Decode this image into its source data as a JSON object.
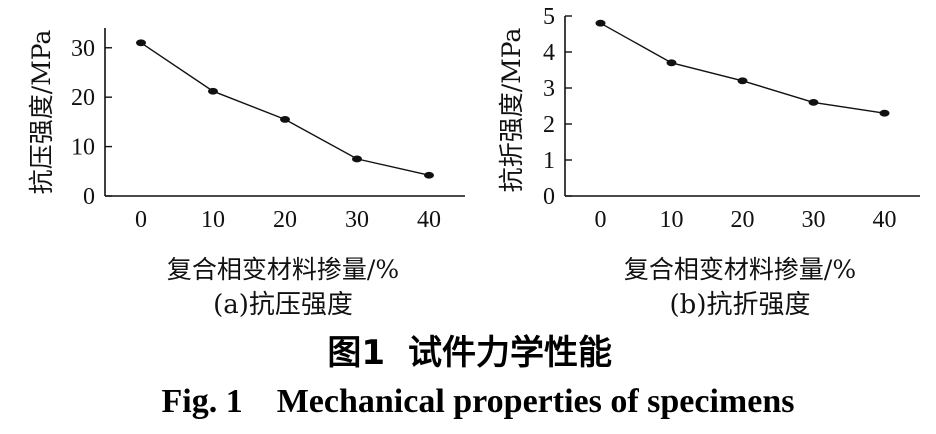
{
  "chart_data": [
    {
      "type": "line",
      "xlabel": "复合相变材料掺量/%",
      "ylabel": "抗压强度/MPa",
      "subcaption": "(a)抗压强度",
      "x": [
        0,
        10,
        20,
        30,
        40
      ],
      "values": [
        31,
        21.2,
        15.5,
        7.5,
        4.2
      ],
      "xticks": [
        0,
        10,
        20,
        30,
        40
      ],
      "yticks": [
        0,
        10,
        20,
        30
      ],
      "xlim": [
        -5,
        45
      ],
      "ylim": [
        0,
        34
      ],
      "grid": false
    },
    {
      "type": "line",
      "xlabel": "复合相变材料掺量/%",
      "ylabel": "抗折强度/MPa",
      "subcaption": "(b)抗折强度",
      "x": [
        0,
        10,
        20,
        30,
        40
      ],
      "values": [
        4.8,
        3.7,
        3.2,
        2.6,
        2.3
      ],
      "xticks": [
        0,
        10,
        20,
        30,
        40
      ],
      "yticks": [
        0,
        1,
        2,
        3,
        4,
        5
      ],
      "xlim": [
        -5,
        45
      ],
      "ylim": [
        0,
        5
      ],
      "grid": false
    }
  ],
  "caption": {
    "cn_number": "图1",
    "cn_title": "试件力学性能",
    "en": "Fig. 1    Mechanical properties of specimens"
  }
}
